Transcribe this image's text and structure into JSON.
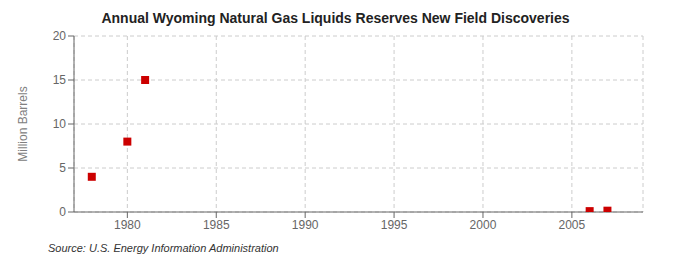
{
  "chart_data": {
    "type": "scatter",
    "title": "Annual Wyoming Natural Gas Liquids Reserves New Field Discoveries",
    "ylabel": "Million Barrels",
    "annotations": [
      "Source: U.S. Energy Information Administration"
    ],
    "x": [
      1978,
      1980,
      1981,
      2006,
      2007
    ],
    "values": [
      4.0,
      8.0,
      15.0,
      0.1,
      0.15
    ],
    "color": "#cc0000",
    "marker": "square",
    "xlim": [
      1977,
      2009
    ],
    "ylim": [
      0,
      20
    ],
    "xticks": [
      1980,
      1985,
      1990,
      1995,
      2000,
      2005
    ],
    "yticks": [
      0,
      5,
      10,
      15,
      20
    ],
    "grid": true
  }
}
